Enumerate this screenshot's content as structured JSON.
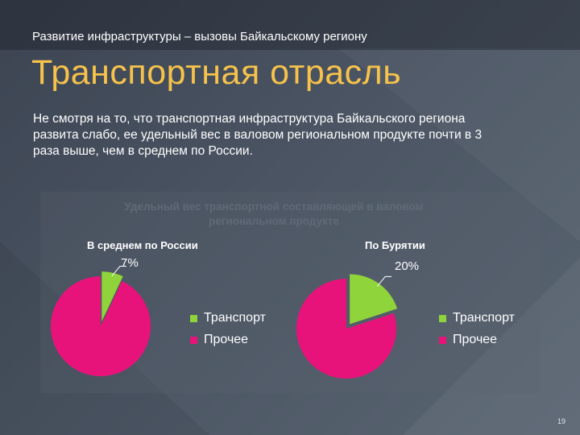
{
  "slide": {
    "subtitle": "Развитие инфраструктуры – вызовы Байкальскому региону",
    "title": "Транспортная отрасль",
    "body": "Не смотря на то, что транспортная инфраструктура Байкальского региона развита слабо, ее удельный вес в валовом региональном продукте почти в 3 раза выше, чем в среднем по России.",
    "page_number": "19"
  },
  "chart_data": {
    "type": "pie",
    "title": "Удельный вес транспортной составляющей в валовом региональном продукте",
    "colors": {
      "transport": "#8ed43a",
      "other": "#e8137a"
    },
    "pies": [
      {
        "title": "В среднем по России",
        "slices": [
          {
            "label": "Транспорт",
            "value": 7,
            "value_label": "7%"
          },
          {
            "label": "Прочее",
            "value": 93
          }
        ]
      },
      {
        "title": "По Бурятии",
        "slices": [
          {
            "label": "Транспорт",
            "value": 20,
            "value_label": "20%"
          },
          {
            "label": "Прочее",
            "value": 80
          }
        ]
      }
    ],
    "legend": [
      "Транспорт",
      "Прочее"
    ]
  }
}
